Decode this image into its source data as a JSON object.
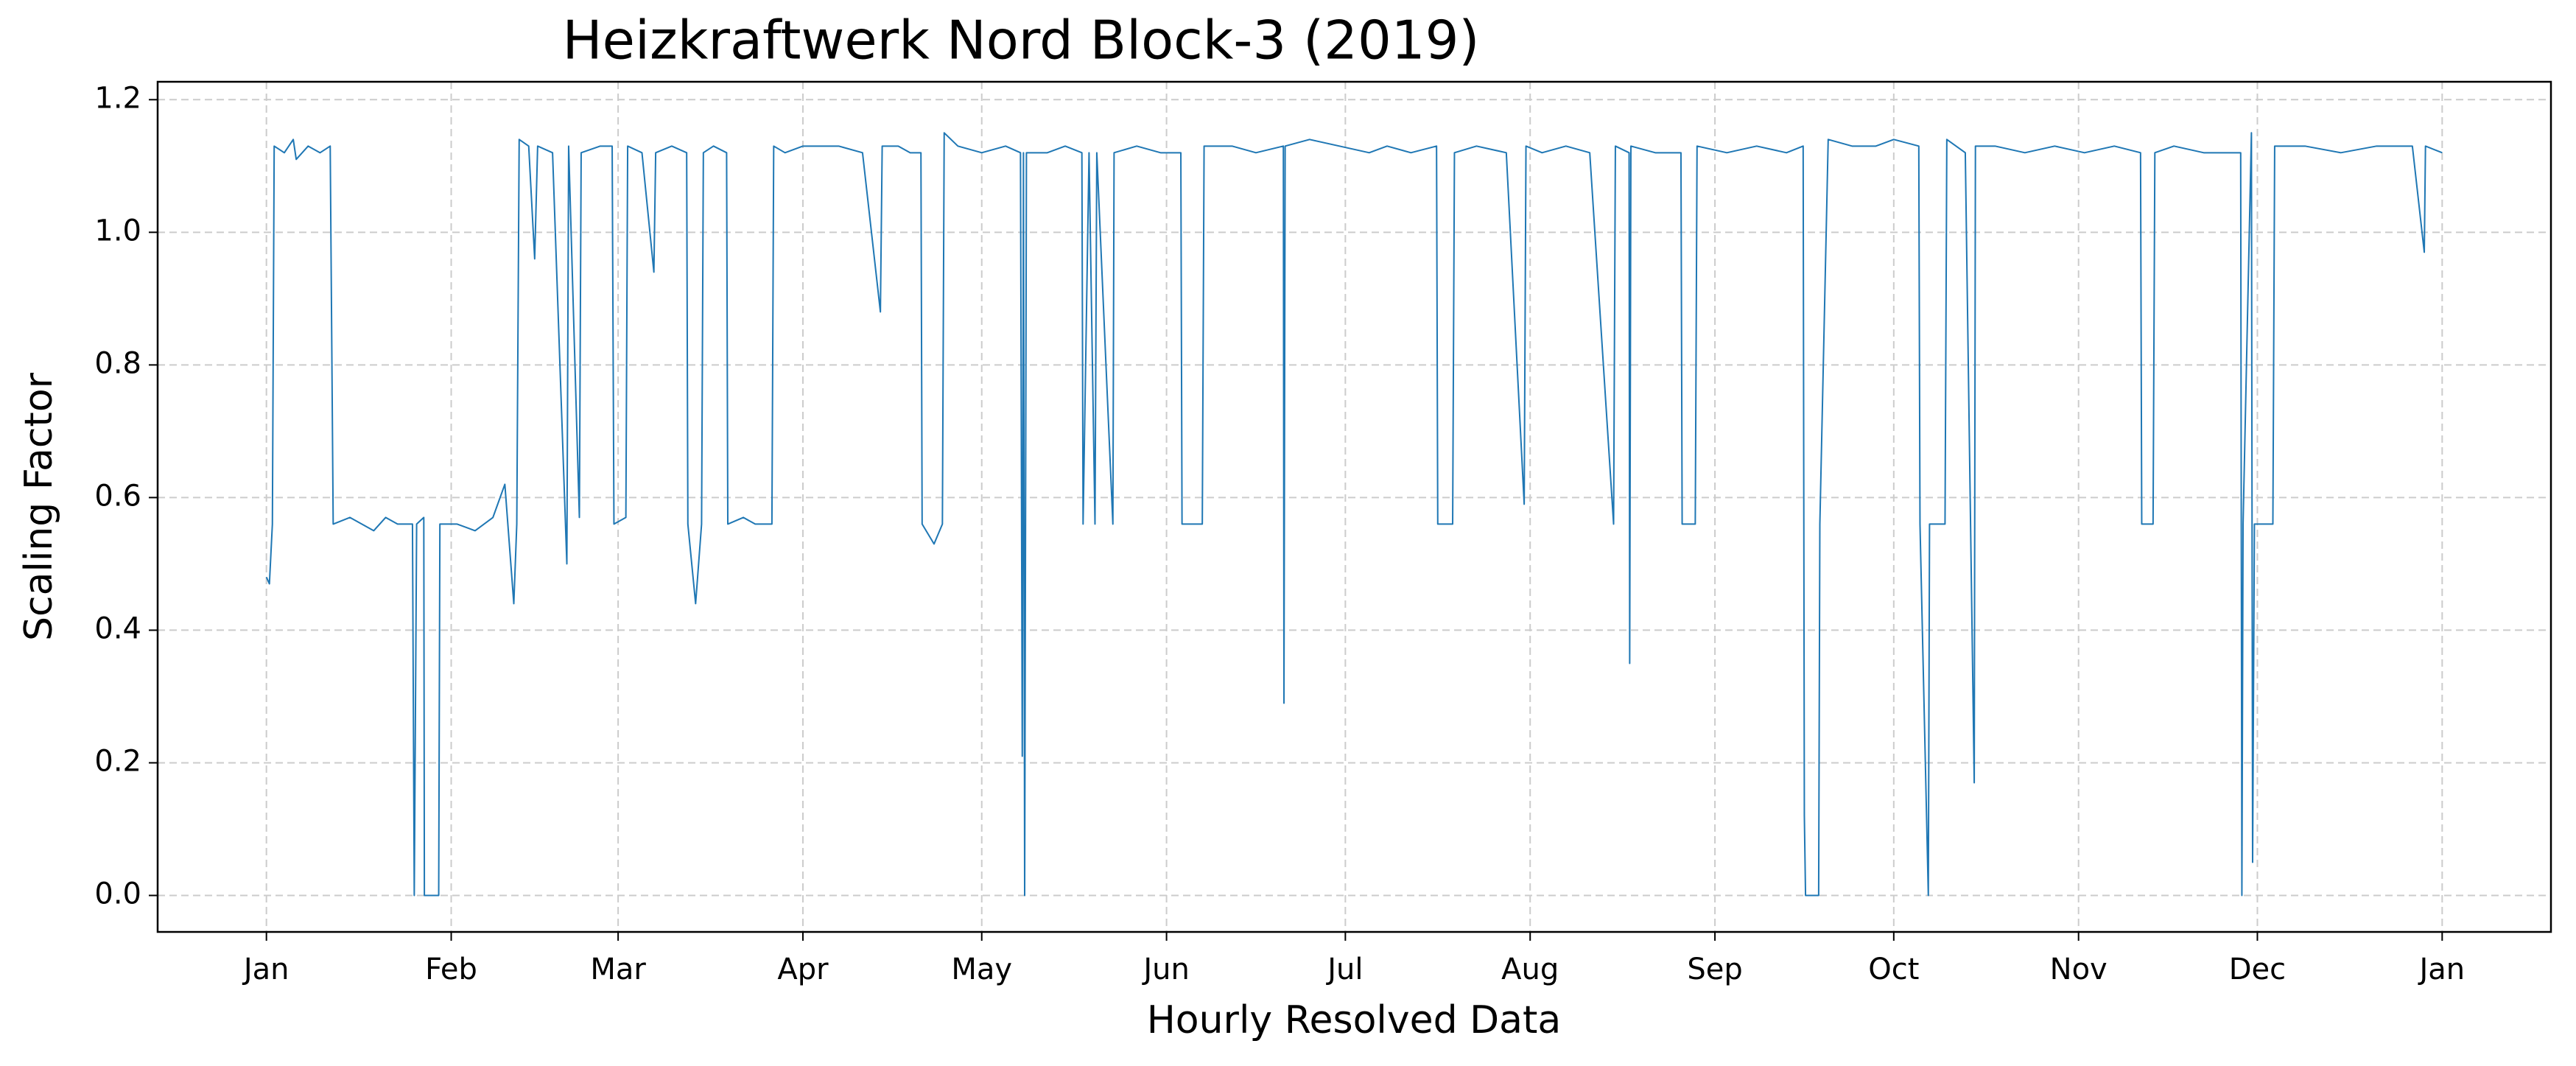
{
  "chart_data": {
    "type": "line",
    "title": "Heizkraftwerk Nord Block-3 (2019)",
    "x_label": "Hourly Resolved Data",
    "y_label": "Scaling Factor",
    "color": "#1f77b4",
    "grid": true,
    "xlim": [
      -18.25,
      383.25
    ],
    "ylim": [
      -0.055,
      1.227
    ],
    "xticks": [
      {
        "value": 0,
        "label": "Jan"
      },
      {
        "value": 31,
        "label": "Feb"
      },
      {
        "value": 59,
        "label": "Mar"
      },
      {
        "value": 90,
        "label": "Apr"
      },
      {
        "value": 120,
        "label": "May"
      },
      {
        "value": 151,
        "label": "Jun"
      },
      {
        "value": 181,
        "label": "Jul"
      },
      {
        "value": 212,
        "label": "Aug"
      },
      {
        "value": 243,
        "label": "Sep"
      },
      {
        "value": 273,
        "label": "Oct"
      },
      {
        "value": 304,
        "label": "Nov"
      },
      {
        "value": 334,
        "label": "Dec"
      },
      {
        "value": 365,
        "label": "Jan"
      }
    ],
    "yticks": [
      {
        "value": 0,
        "label": "0.0"
      },
      {
        "value": 0.2,
        "label": "0.2"
      },
      {
        "value": 0.4,
        "label": "0.4"
      },
      {
        "value": 0.6,
        "label": "0.6"
      },
      {
        "value": 0.8,
        "label": "0.8"
      },
      {
        "value": 1,
        "label": "1.0"
      },
      {
        "value": 1.2,
        "label": "1.2"
      }
    ],
    "x": [
      0,
      0.5,
      1,
      1.3,
      3,
      4.5,
      5,
      7,
      9,
      10.7,
      11.2,
      14,
      16,
      18,
      20,
      22,
      24.5,
      24.8,
      25.2,
      26.4,
      26.5,
      28.9,
      29.1,
      32,
      35,
      38,
      40,
      40.5,
      41.5,
      42,
      42.4,
      44,
      45,
      45.5,
      48,
      50.4,
      50.7,
      52.5,
      52.8,
      56,
      58,
      58.3,
      60.3,
      60.6,
      63,
      65,
      65.3,
      68,
      70.5,
      70.7,
      72,
      73,
      73.3,
      75,
      77.2,
      77.4,
      80,
      82,
      84.8,
      85.1,
      87,
      90,
      93,
      96,
      100,
      103,
      103.3,
      106,
      108,
      109.8,
      110,
      112,
      113.4,
      113.7,
      116,
      120,
      124,
      126.5,
      126.8,
      127,
      127.2,
      127.5,
      131,
      134,
      136.8,
      137,
      138,
      139,
      139.3,
      142,
      142.2,
      146,
      150,
      153.4,
      153.6,
      157,
      157.3,
      162,
      166,
      170.6,
      170.7,
      170.9,
      175,
      180,
      185,
      188,
      192,
      196.3,
      196.5,
      199,
      199.3,
      203,
      208,
      211,
      211.3,
      214,
      218,
      222,
      226,
      226.3,
      228.6,
      228.7,
      228.9,
      233,
      237.3,
      237.5,
      239.7,
      240,
      245,
      250,
      255,
      257.8,
      258,
      258.2,
      260.4,
      260.6,
      262,
      266,
      270,
      273,
      277.2,
      277.4,
      278.8,
      279,
      281.6,
      281.9,
      285,
      286.5,
      286.7,
      290,
      295,
      300,
      305,
      310,
      314.4,
      314.6,
      316.5,
      316.8,
      320,
      325,
      330,
      331.2,
      331.4,
      331.6,
      333,
      333.2,
      333.5,
      336.6,
      336.9,
      342,
      348,
      354,
      360,
      362,
      362.2,
      365
    ],
    "values": [
      0.48,
      0.47,
      0.56,
      1.13,
      1.12,
      1.14,
      1.11,
      1.13,
      1.12,
      1.13,
      0.56,
      0.57,
      0.56,
      0.55,
      0.57,
      0.56,
      0.56,
      0,
      0.56,
      0.57,
      0,
      0,
      0.56,
      0.56,
      0.55,
      0.57,
      0.62,
      0.56,
      0.44,
      0.56,
      1.14,
      1.13,
      0.96,
      1.13,
      1.12,
      0.5,
      1.13,
      0.57,
      1.12,
      1.13,
      1.13,
      0.56,
      0.57,
      1.13,
      1.12,
      0.94,
      1.12,
      1.13,
      1.12,
      0.56,
      0.44,
      0.56,
      1.12,
      1.13,
      1.12,
      0.56,
      0.57,
      0.56,
      0.56,
      1.13,
      1.12,
      1.13,
      1.13,
      1.13,
      1.12,
      0.88,
      1.13,
      1.13,
      1.12,
      1.12,
      0.56,
      0.53,
      0.56,
      1.15,
      1.13,
      1.12,
      1.13,
      1.12,
      0.21,
      1.12,
      0,
      1.12,
      1.12,
      1.13,
      1.12,
      0.56,
      1.12,
      0.56,
      1.12,
      0.56,
      1.12,
      1.13,
      1.12,
      1.12,
      0.56,
      0.56,
      1.13,
      1.13,
      1.12,
      1.13,
      0.29,
      1.13,
      1.14,
      1.13,
      1.12,
      1.13,
      1.12,
      1.13,
      0.56,
      0.56,
      1.12,
      1.13,
      1.12,
      0.59,
      1.13,
      1.12,
      1.13,
      1.12,
      0.56,
      1.13,
      1.12,
      0.35,
      1.13,
      1.12,
      1.12,
      0.56,
      0.56,
      1.13,
      1.12,
      1.13,
      1.12,
      1.13,
      0.12,
      0,
      0,
      0.56,
      1.14,
      1.13,
      1.13,
      1.14,
      1.13,
      0.56,
      0,
      0.56,
      0.56,
      1.14,
      1.12,
      0.17,
      1.13,
      1.13,
      1.12,
      1.13,
      1.12,
      1.13,
      1.12,
      0.56,
      0.56,
      1.12,
      1.13,
      1.12,
      1.12,
      1.12,
      0,
      0.56,
      1.15,
      0.05,
      0.56,
      0.56,
      1.13,
      1.13,
      1.12,
      1.13,
      1.13,
      0.97,
      1.13,
      1.12
    ]
  }
}
